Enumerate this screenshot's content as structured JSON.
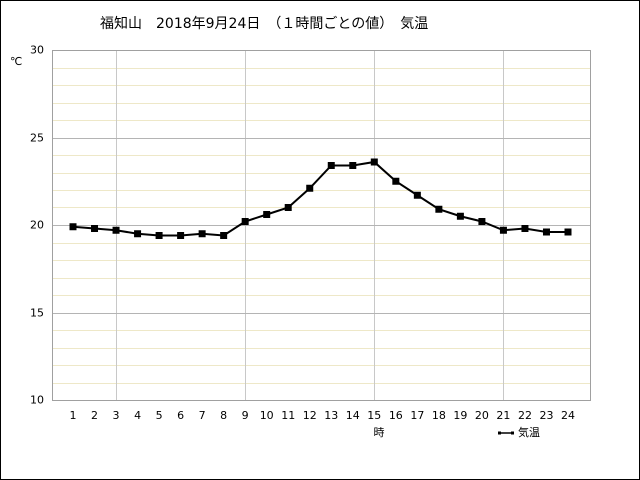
{
  "chart_data": {
    "type": "line",
    "title": "福知山　2018年9月24日　（１時間ごとの値）　気温",
    "y_unit": "℃",
    "x_label": "時",
    "categories": [
      "1",
      "2",
      "3",
      "4",
      "5",
      "6",
      "7",
      "8",
      "9",
      "10",
      "11",
      "12",
      "13",
      "14",
      "15",
      "16",
      "17",
      "18",
      "19",
      "20",
      "21",
      "22",
      "23",
      "24"
    ],
    "series": [
      {
        "name": "気温",
        "color": "#000000",
        "values": [
          19.9,
          19.8,
          19.7,
          19.5,
          19.4,
          19.4,
          19.5,
          19.4,
          20.2,
          20.6,
          21.0,
          22.1,
          23.4,
          23.4,
          23.6,
          22.5,
          21.7,
          20.9,
          20.5,
          20.2,
          19.7,
          19.8,
          19.6,
          19.6
        ]
      }
    ],
    "ylim": [
      10,
      30
    ],
    "yticks": [
      10,
      15,
      20,
      25,
      30
    ],
    "grid": true
  }
}
